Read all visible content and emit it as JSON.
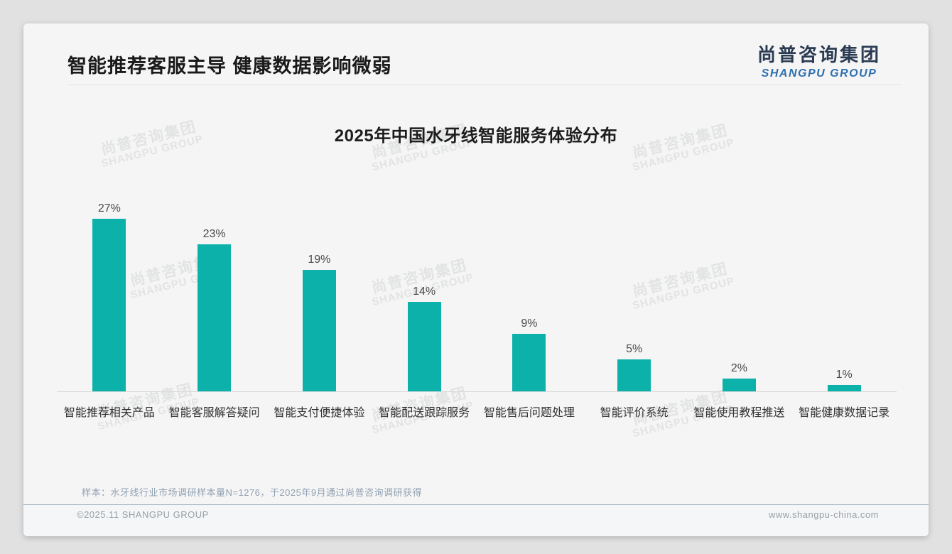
{
  "page": {
    "header": {
      "title": "智能推荐客服主导 健康数据影响微弱"
    },
    "logo": {
      "cn": "尚普咨询集团",
      "en": "SHANGPU GROUP"
    },
    "watermark": {
      "cn": "尚普咨询集团",
      "en": "SHANGPU GROUP"
    },
    "note": "样本：水牙线行业市场调研样本量N=1276，于2025年9月通过尚普咨询调研获得",
    "footer": {
      "left": "©2025.11 SHANGPU GROUP",
      "right": "www.shangpu-china.com"
    }
  },
  "colors": {
    "bar": "#0cb2a9",
    "logo_cn": "#2b3b52",
    "logo_en": "#2f6fae",
    "value_label": "#4a4a4a",
    "category_label": "#333333"
  },
  "chart_data": {
    "type": "bar",
    "title": "2025年中国水牙线智能服务体验分布",
    "categories": [
      "智能推荐相关产品",
      "智能客服解答疑问",
      "智能支付便捷体验",
      "智能配送跟踪服务",
      "智能售后问题处理",
      "智能评价系统",
      "智能使用教程推送",
      "智能健康数据记录"
    ],
    "values": [
      27,
      23,
      19,
      14,
      9,
      5,
      2,
      1
    ],
    "unit": "%",
    "ylim": [
      0,
      28
    ],
    "grid": false,
    "legend": false,
    "value_labels": "above bars",
    "bar_color": "#0cb2a9"
  }
}
